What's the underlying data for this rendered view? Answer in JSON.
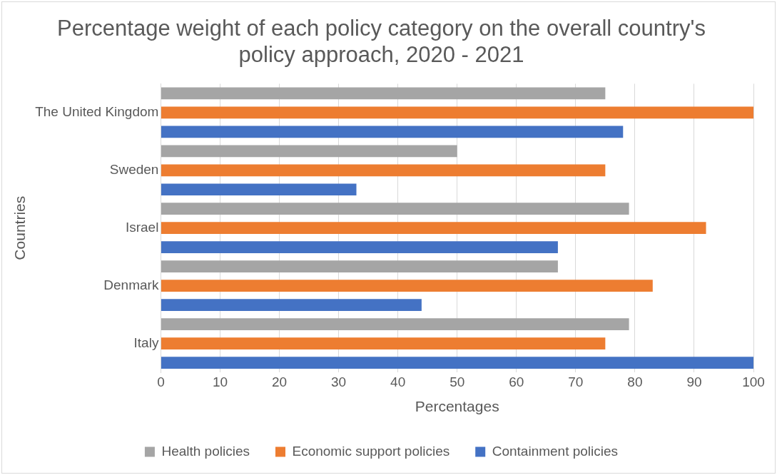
{
  "chart_data": {
    "type": "bar",
    "orientation": "horizontal",
    "title": "Percentage weight of each policy category on the overall country's policy approach, 2020 - 2021",
    "xlabel": "Percentages",
    "ylabel": "Countries",
    "categories": [
      "The United Kingdom",
      "Sweden",
      "Israel",
      "Denmark",
      "Italy"
    ],
    "series": [
      {
        "name": "Health policies",
        "color": "#a5a5a5",
        "values": [
          75,
          50,
          79,
          67,
          79
        ]
      },
      {
        "name": "Economic support policies",
        "color": "#ed7d31",
        "values": [
          100,
          75,
          92,
          83,
          75
        ]
      },
      {
        "name": "Containment policies",
        "color": "#4472c4",
        "values": [
          78,
          33,
          67,
          44,
          100
        ]
      }
    ],
    "xlim": [
      0,
      100
    ],
    "xticks": [
      0,
      10,
      20,
      30,
      40,
      50,
      60,
      70,
      80,
      90,
      100
    ],
    "grid": "x",
    "legend": "bottom"
  }
}
